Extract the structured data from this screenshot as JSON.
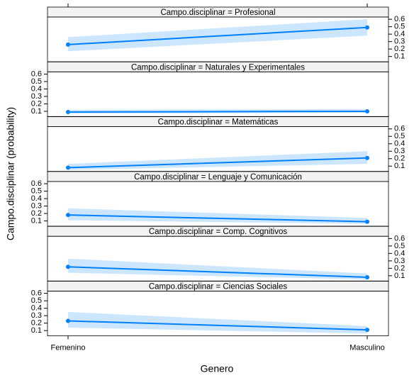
{
  "chart_data": {
    "type": "line",
    "xlabel": "Genero",
    "ylabel": "Campo.disciplinar (probability)",
    "categories": [
      "Femenino",
      "Masculino"
    ],
    "ylim": [
      0.03,
      0.63
    ],
    "yticks": [
      0.1,
      0.2,
      0.3,
      0.4,
      0.5,
      0.6
    ],
    "color": "#0080ff",
    "band_color": "#cce6ff",
    "panels": [
      {
        "title": "Campo.disciplinar = Profesional",
        "values": [
          0.26,
          0.49
        ],
        "lower": [
          0.17,
          0.38
        ],
        "upper": [
          0.36,
          0.6
        ]
      },
      {
        "title": "Campo.disciplinar = Naturales y Experimentales",
        "values": [
          0.09,
          0.1
        ],
        "lower": [
          0.07,
          0.08
        ],
        "upper": [
          0.12,
          0.13
        ]
      },
      {
        "title": "Campo.disciplinar = Matemáticas",
        "values": [
          0.08,
          0.21
        ],
        "lower": [
          0.05,
          0.13
        ],
        "upper": [
          0.13,
          0.3
        ]
      },
      {
        "title": "Campo.disciplinar = Lenguaje y Comunicación",
        "values": [
          0.18,
          0.09
        ],
        "lower": [
          0.11,
          0.06
        ],
        "upper": [
          0.27,
          0.14
        ]
      },
      {
        "title": "Campo.disciplinar = Comp. Cognitivos",
        "values": [
          0.22,
          0.08
        ],
        "lower": [
          0.14,
          0.05
        ],
        "upper": [
          0.33,
          0.13
        ]
      },
      {
        "title": "Campo.disciplinar = Ciencias Sociales",
        "values": [
          0.23,
          0.11
        ],
        "lower": [
          0.14,
          0.06
        ],
        "upper": [
          0.35,
          0.16
        ]
      }
    ]
  }
}
